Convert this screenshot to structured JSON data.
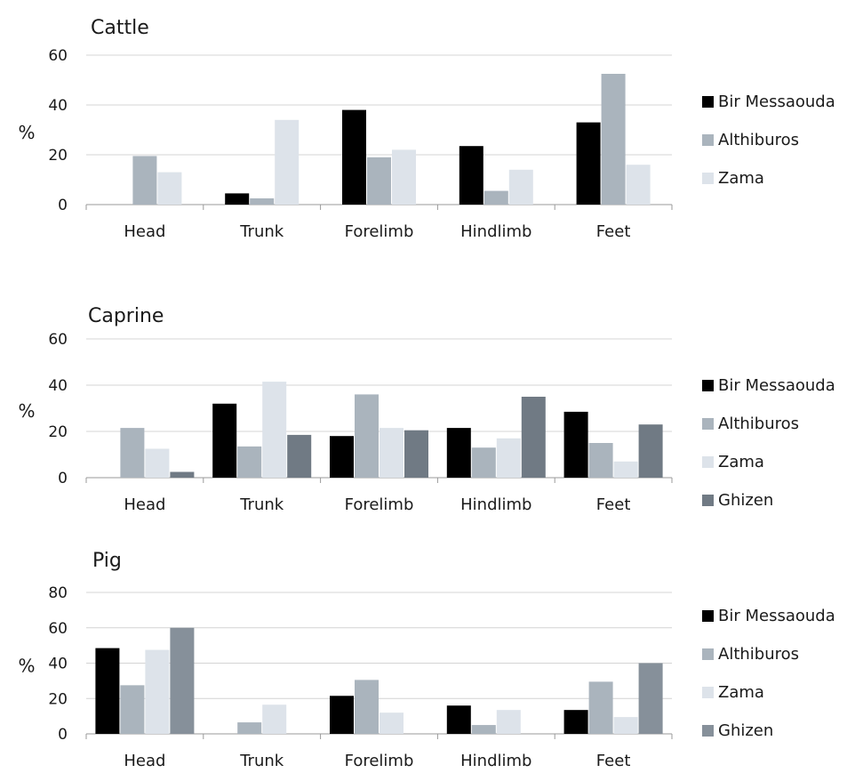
{
  "chart_data": [
    {
      "type": "bar",
      "title": "Cattle",
      "ylabel": "%",
      "ylim": [
        0,
        60
      ],
      "yticks": [
        "0",
        "20",
        "40",
        "60"
      ],
      "categories": [
        "Head",
        "Trunk",
        "Forelimb",
        "Hindlimb",
        "Feet"
      ],
      "grid": true,
      "legend_position": "right",
      "series": [
        {
          "name": "Bir Messaouda",
          "color": "#000000",
          "values": [
            0,
            4.5,
            38,
            23.5,
            33
          ]
        },
        {
          "name": "Althiburos",
          "color": "#aab4bd",
          "values": [
            19.5,
            2.5,
            19,
            5.5,
            52.5
          ]
        },
        {
          "name": "Zama",
          "color": "#dde3ea",
          "values": [
            13,
            34,
            22,
            14,
            16
          ]
        }
      ]
    },
    {
      "type": "bar",
      "title": "Caprine",
      "ylabel": "%",
      "ylim": [
        0,
        60
      ],
      "yticks": [
        "0",
        "20",
        "40",
        "60"
      ],
      "categories": [
        "Head",
        "Trunk",
        "Forelimb",
        "Hindlimb",
        "Feet"
      ],
      "grid": true,
      "legend_position": "right",
      "series": [
        {
          "name": "Bir Messaouda",
          "color": "#000000",
          "values": [
            0,
            32,
            18,
            21.5,
            28.5
          ]
        },
        {
          "name": "Althiburos",
          "color": "#aab4bd",
          "values": [
            21.5,
            13.5,
            36,
            13,
            15
          ]
        },
        {
          "name": "Zama",
          "color": "#dde3ea",
          "values": [
            12.5,
            41.5,
            21.5,
            17,
            7
          ]
        },
        {
          "name": "Ghizen",
          "color": "#707a84",
          "values": [
            2.5,
            18.5,
            20.5,
            35,
            23
          ]
        }
      ]
    },
    {
      "type": "bar",
      "title": "Pig",
      "ylabel": "%",
      "ylim": [
        0,
        80
      ],
      "yticks": [
        "0",
        "20",
        "40",
        "60",
        "80"
      ],
      "categories": [
        "Head",
        "Trunk",
        "Forelimb",
        "Hindlimb",
        "Feet"
      ],
      "grid": true,
      "legend_position": "right",
      "series": [
        {
          "name": "Bir Messaouda",
          "color": "#000000",
          "values": [
            48.5,
            0,
            21.5,
            16,
            13.5
          ]
        },
        {
          "name": "Althiburos",
          "color": "#aab4bd",
          "values": [
            27.5,
            6.5,
            30.5,
            5,
            29.5
          ]
        },
        {
          "name": "Zama",
          "color": "#dde3ea",
          "values": [
            47.5,
            16.5,
            12,
            13.5,
            9.5
          ]
        },
        {
          "name": "Ghizen",
          "color": "#86909a",
          "values": [
            60,
            0,
            0,
            0,
            40
          ]
        }
      ]
    }
  ]
}
